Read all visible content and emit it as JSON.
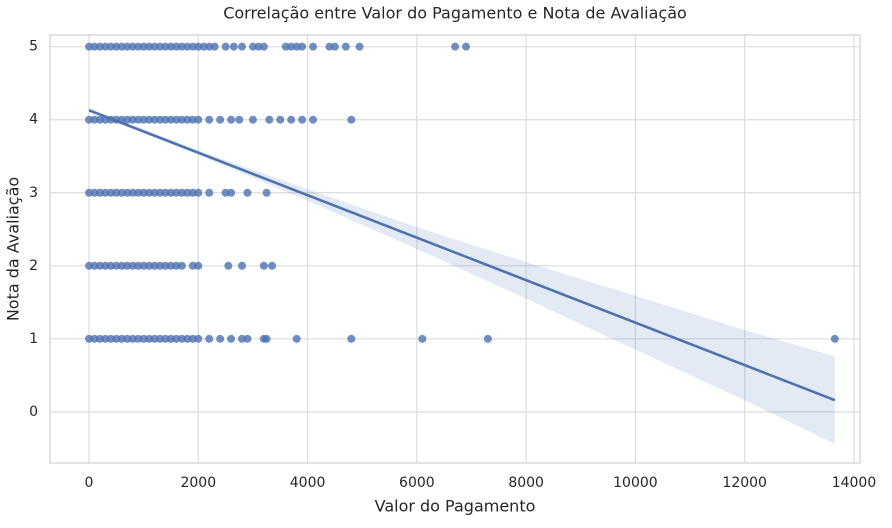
{
  "chart_data": {
    "type": "scatter",
    "title": "Correlação entre Valor do Pagamento e Nota de Avaliação",
    "x_label": "Valor do Pagamento",
    "y_label": "Nota da Avaliação",
    "color": "#4c72b0",
    "grid": true,
    "xlim": [
      -714,
      14110
    ],
    "ylim": [
      -0.7,
      5.16
    ],
    "xticks": [
      0,
      2000,
      4000,
      6000,
      8000,
      10000,
      12000,
      14000
    ],
    "yticks": [
      0,
      1,
      2,
      3,
      4,
      5
    ],
    "x": [
      0,
      100,
      200,
      300,
      400,
      500,
      600,
      700,
      800,
      900,
      1000,
      1100,
      1200,
      1300,
      1400,
      1500,
      1600,
      1700,
      1800,
      1900,
      2000,
      2100,
      2200,
      2300,
      2500,
      2650,
      2800,
      3000,
      3100,
      3200,
      3600,
      3700,
      3800,
      3900,
      4100,
      4400,
      4500,
      4700,
      4950,
      6700,
      6900,
      0,
      100,
      200,
      300,
      400,
      500,
      600,
      700,
      800,
      900,
      1000,
      1100,
      1200,
      1300,
      1400,
      1500,
      1600,
      1700,
      1800,
      1900,
      2000,
      2200,
      2400,
      2600,
      2750,
      3000,
      3300,
      3500,
      3700,
      3900,
      4100,
      4800,
      0,
      100,
      200,
      300,
      400,
      500,
      600,
      700,
      800,
      900,
      1000,
      1100,
      1200,
      1300,
      1400,
      1500,
      1600,
      1700,
      1800,
      1900,
      2000,
      2200,
      2500,
      2600,
      2900,
      3250,
      0,
      100,
      200,
      300,
      400,
      500,
      600,
      700,
      800,
      900,
      1000,
      1100,
      1200,
      1300,
      1400,
      1500,
      1600,
      1700,
      1900,
      2000,
      2550,
      2800,
      3200,
      3350,
      0,
      100,
      200,
      300,
      400,
      500,
      600,
      700,
      800,
      900,
      1000,
      1100,
      1200,
      1300,
      1400,
      1500,
      1600,
      1700,
      1800,
      1900,
      2000,
      2200,
      2400,
      2600,
      2800,
      2900,
      3200,
      3250,
      3800,
      4800,
      6100,
      7300,
      13650
    ],
    "values": [
      5,
      5,
      5,
      5,
      5,
      5,
      5,
      5,
      5,
      5,
      5,
      5,
      5,
      5,
      5,
      5,
      5,
      5,
      5,
      5,
      5,
      5,
      5,
      5,
      5,
      5,
      5,
      5,
      5,
      5,
      5,
      5,
      5,
      5,
      5,
      5,
      5,
      5,
      5,
      5,
      5,
      4,
      4,
      4,
      4,
      4,
      4,
      4,
      4,
      4,
      4,
      4,
      4,
      4,
      4,
      4,
      4,
      4,
      4,
      4,
      4,
      4,
      4,
      4,
      4,
      4,
      4,
      4,
      4,
      4,
      4,
      4,
      4,
      3,
      3,
      3,
      3,
      3,
      3,
      3,
      3,
      3,
      3,
      3,
      3,
      3,
      3,
      3,
      3,
      3,
      3,
      3,
      3,
      3,
      3,
      3,
      3,
      3,
      3,
      2,
      2,
      2,
      2,
      2,
      2,
      2,
      2,
      2,
      2,
      2,
      2,
      2,
      2,
      2,
      2,
      2,
      2,
      2,
      2,
      2,
      2,
      2,
      2,
      1,
      1,
      1,
      1,
      1,
      1,
      1,
      1,
      1,
      1,
      1,
      1,
      1,
      1,
      1,
      1,
      1,
      1,
      1,
      1,
      1,
      1,
      1,
      1,
      1,
      1,
      1,
      1,
      1,
      1,
      1,
      1,
      1
    ],
    "regression": {
      "x": [
        0,
        13650
      ],
      "y": [
        4.13,
        0.16
      ]
    },
    "ci": {
      "x": [
        0,
        2000,
        4000,
        6000,
        8000,
        10000,
        12000,
        13650
      ],
      "lower": [
        4.1,
        3.52,
        2.89,
        2.23,
        1.55,
        0.85,
        0.16,
        -0.44
      ],
      "upper": [
        4.16,
        3.58,
        3.05,
        2.53,
        2.05,
        1.59,
        1.12,
        0.76
      ]
    }
  }
}
